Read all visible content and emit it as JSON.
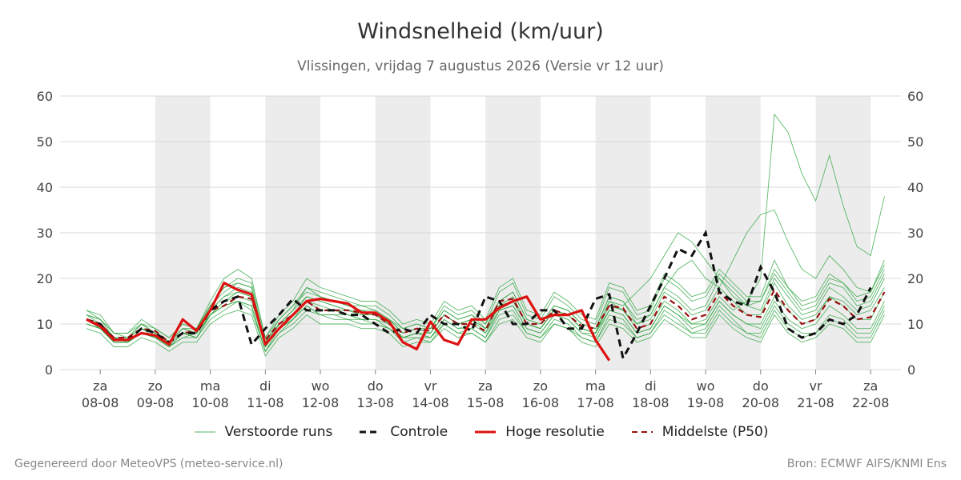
{
  "title": "Windsnelheid (km/uur)",
  "subtitle": "Vlissingen, vrijdag  7 augustus 2026 (Versie vr 12 uur)",
  "footer": {
    "generated": "Gegenereerd door MeteoVPS (meteo-service.nl)",
    "source": "Bron: ECMWF AIFS/KNMI Ens"
  },
  "colors": {
    "ensemble": "#27a33a",
    "control": "#111111",
    "high_res": "#dd1111",
    "median": "#991111",
    "weekend_band": "#ececec"
  },
  "legend": [
    {
      "label": "Verstoorde runs",
      "style": "ensemble"
    },
    {
      "label": "Controle",
      "style": "control"
    },
    {
      "label": "Hoge resolutie",
      "style": "high_res"
    },
    {
      "label": "Middelste (P50)",
      "style": "median"
    }
  ],
  "chart_data": {
    "type": "line",
    "title": "Windsnelheid (km/uur)",
    "subtitle": "Vlissingen, vrijdag  7 augustus 2026 (Versie vr 12 uur)",
    "ylim": [
      0,
      60
    ],
    "yticks": [
      0,
      10,
      20,
      30,
      40,
      50,
      60
    ],
    "y_axis_both_sides": true,
    "grid": true,
    "legend_position": "bottom",
    "x_range_days": [
      -0.73,
      14.55
    ],
    "time_step_days": 0.25,
    "shaded_day_indices": [
      1,
      3,
      5,
      7,
      9,
      11,
      13,
      15
    ],
    "x_ticks": [
      {
        "day": "za",
        "date": "08-08"
      },
      {
        "day": "zo",
        "date": "09-08"
      },
      {
        "day": "ma",
        "date": "10-08"
      },
      {
        "day": "di",
        "date": "11-08"
      },
      {
        "day": "wo",
        "date": "12-08"
      },
      {
        "day": "do",
        "date": "13-08"
      },
      {
        "day": "vr",
        "date": "14-08"
      },
      {
        "day": "za",
        "date": "15-08"
      },
      {
        "day": "zo",
        "date": "16-08"
      },
      {
        "day": "ma",
        "date": "17-08"
      },
      {
        "day": "di",
        "date": "18-08"
      },
      {
        "day": "wo",
        "date": "19-08"
      },
      {
        "day": "do",
        "date": "20-08"
      },
      {
        "day": "vr",
        "date": "21-08"
      },
      {
        "day": "za",
        "date": "22-08"
      }
    ],
    "x_start_day": -0.25,
    "series": [
      {
        "name": "Controle",
        "style": "control",
        "values": [
          11,
          10,
          6.5,
          6.5,
          9,
          8,
          6,
          8,
          8,
          13,
          15,
          16,
          5.5,
          9,
          12,
          15.5,
          13,
          13,
          13,
          12,
          12,
          10,
          8,
          9,
          8,
          12,
          10,
          10,
          8.5,
          16,
          15,
          10,
          10,
          13,
          13,
          9,
          9,
          15.5,
          16.5,
          2.5,
          8,
          14,
          20,
          26.5,
          25,
          30,
          17,
          15,
          14,
          22.5,
          17,
          9,
          7,
          8,
          11,
          10,
          12,
          18
        ]
      },
      {
        "name": "Hoge resolutie",
        "style": "high_res",
        "values": [
          11,
          9.5,
          6.5,
          6.5,
          8,
          7.5,
          5.5,
          11,
          8.5,
          13,
          19,
          17.5,
          16.5,
          5.5,
          9,
          12,
          15,
          15.5,
          15,
          14.5,
          12.5,
          12.5,
          10.5,
          6,
          4.5,
          10.5,
          6.5,
          5.5,
          11,
          11,
          13.5,
          15,
          16,
          11,
          12,
          12,
          13,
          6.5,
          2
        ]
      },
      {
        "name": "Middelste (P50)",
        "style": "median",
        "values": [
          11,
          10,
          7,
          7,
          9,
          8.5,
          6,
          8,
          8.5,
          13,
          14,
          16,
          15.5,
          6.5,
          10,
          12,
          15,
          13,
          13,
          13,
          12.5,
          12,
          10,
          8,
          9,
          8.5,
          12,
          10,
          10,
          8.5,
          15,
          15.5,
          10,
          10,
          13,
          12,
          9.5,
          9,
          14,
          13.5,
          9,
          10,
          16,
          14,
          11,
          12,
          17,
          14,
          12,
          11.5,
          17.5,
          13,
          10,
          11,
          15.5,
          14,
          11,
          11.5,
          17
        ]
      },
      {
        "name": "",
        "style": "ensemble",
        "values": [
          12,
          11,
          7,
          7,
          10,
          8,
          6,
          9,
          8,
          14,
          18,
          19,
          18,
          6,
          10,
          13,
          18,
          16,
          15,
          14,
          13,
          13,
          11,
          8,
          9,
          9,
          13,
          11,
          12,
          9,
          15,
          17,
          11,
          10,
          14,
          13,
          10,
          9,
          16,
          15,
          10,
          11,
          17,
          15,
          12,
          13,
          18,
          15,
          12,
          12,
          19,
          14,
          11,
          12,
          16,
          15,
          12,
          13,
          18
        ]
      },
      {
        "name": "",
        "style": "ensemble",
        "values": [
          10,
          9,
          6,
          6,
          8,
          7,
          5,
          7,
          7,
          12,
          14,
          15,
          14,
          4,
          9,
          11,
          14,
          12,
          12,
          12,
          11,
          11,
          9,
          7,
          8,
          7,
          11,
          9,
          9,
          7,
          13,
          14,
          9,
          8,
          12,
          11,
          8,
          7,
          13,
          12,
          8,
          9,
          14,
          12,
          10,
          10,
          15,
          12,
          10,
          9,
          15,
          11,
          9,
          10,
          14,
          12,
          9,
          9,
          15
        ]
      },
      {
        "name": "",
        "style": "ensemble",
        "values": [
          13,
          12,
          8,
          8,
          11,
          9,
          7,
          10,
          9,
          15,
          20,
          22,
          20,
          7,
          12,
          15,
          20,
          18,
          17,
          16,
          15,
          15,
          13,
          10,
          11,
          10,
          15,
          13,
          14,
          11,
          18,
          20,
          13,
          12,
          17,
          15,
          12,
          11,
          19,
          18,
          13,
          14,
          21,
          19,
          16,
          17,
          22,
          19,
          16,
          16,
          24,
          18,
          14,
          15,
          20,
          19,
          15,
          16,
          22
        ]
      },
      {
        "name": "",
        "style": "ensemble",
        "values": [
          9,
          8,
          5,
          5,
          7,
          6,
          4,
          6,
          6,
          10,
          12,
          13,
          12,
          3,
          7,
          9,
          12,
          10,
          10,
          10,
          9,
          9,
          8,
          5,
          6,
          6,
          9,
          7,
          8,
          6,
          10,
          11,
          7,
          6,
          10,
          9,
          6,
          5,
          10,
          9,
          6,
          7,
          11,
          9,
          7,
          7,
          12,
          9,
          7,
          6,
          12,
          8,
          6,
          7,
          10,
          9,
          6,
          6,
          12
        ]
      },
      {
        "name": "",
        "style": "ensemble",
        "values": [
          11,
          10,
          7,
          6,
          9,
          8,
          6,
          8,
          8,
          13,
          16,
          17,
          16,
          5,
          10,
          12,
          16,
          15,
          14,
          13,
          12,
          12,
          10,
          7,
          8,
          8,
          12,
          10,
          11,
          8,
          14,
          15,
          10,
          9,
          13,
          12,
          9,
          8,
          15,
          14,
          17,
          20,
          25,
          30,
          28,
          24,
          20,
          16,
          14,
          13,
          20,
          16,
          12,
          13,
          18,
          16,
          13,
          14,
          20
        ]
      },
      {
        "name": "",
        "style": "ensemble",
        "values": [
          12,
          10,
          7,
          7,
          9,
          7,
          6,
          8,
          8,
          12,
          15,
          17,
          16,
          5,
          9,
          12,
          15,
          14,
          13,
          13,
          12,
          12,
          10,
          8,
          9,
          8,
          12,
          10,
          11,
          9,
          14,
          16,
          10,
          9,
          13,
          12,
          9,
          8,
          15,
          13,
          10,
          12,
          18,
          22,
          24,
          20,
          18,
          24,
          30,
          34,
          35,
          28,
          22,
          20,
          25,
          22,
          18,
          17,
          24
        ]
      },
      {
        "name": "",
        "style": "ensemble",
        "values": [
          11,
          10,
          7,
          7,
          9,
          8,
          6,
          9,
          8,
          13,
          16,
          18,
          17,
          6,
          10,
          13,
          16,
          15,
          14,
          13,
          13,
          12,
          11,
          8,
          9,
          8,
          12,
          10,
          11,
          9,
          14,
          15,
          10,
          9,
          13,
          12,
          9,
          8,
          14,
          13,
          9,
          10,
          15,
          13,
          10,
          11,
          16,
          13,
          15,
          20,
          56,
          52,
          43,
          37,
          47,
          36,
          27,
          25,
          38
        ]
      },
      {
        "name": "",
        "style": "ensemble",
        "values": [
          10,
          9,
          6,
          6,
          8,
          7,
          5,
          8,
          7,
          12,
          15,
          16,
          15,
          5,
          9,
          11,
          15,
          13,
          13,
          12,
          11,
          11,
          10,
          7,
          8,
          7,
          11,
          9,
          10,
          8,
          13,
          14,
          9,
          8,
          12,
          11,
          8,
          8,
          13,
          12,
          8,
          9,
          14,
          12,
          9,
          10,
          15,
          12,
          10,
          10,
          16,
          13,
          10,
          11,
          16,
          14,
          11,
          11,
          17
        ]
      },
      {
        "name": "",
        "style": "ensemble",
        "values": [
          12,
          11,
          8,
          7,
          10,
          8,
          6,
          9,
          9,
          14,
          17,
          19,
          18,
          6,
          11,
          14,
          17,
          16,
          15,
          14,
          14,
          13,
          11,
          9,
          10,
          9,
          13,
          11,
          12,
          10,
          15,
          17,
          11,
          10,
          14,
          13,
          10,
          9,
          16,
          15,
          11,
          12,
          18,
          16,
          13,
          14,
          20,
          17,
          14,
          15,
          21,
          17,
          13,
          14,
          19,
          18,
          14,
          15,
          21
        ]
      },
      {
        "name": "",
        "style": "ensemble",
        "values": [
          11,
          9,
          6,
          6,
          8,
          7,
          5,
          7,
          8,
          12,
          14,
          15,
          14,
          4,
          8,
          11,
          14,
          12,
          12,
          11,
          11,
          10,
          9,
          7,
          7,
          7,
          10,
          8,
          9,
          7,
          12,
          13,
          8,
          7,
          11,
          10,
          7,
          6,
          12,
          11,
          7,
          8,
          13,
          11,
          8,
          9,
          14,
          11,
          8,
          8,
          14,
          10,
          8,
          8,
          12,
          11,
          8,
          8,
          14
        ]
      },
      {
        "name": "",
        "style": "ensemble",
        "values": [
          13,
          11,
          8,
          8,
          10,
          9,
          7,
          10,
          9,
          14,
          18,
          20,
          19,
          7,
          11,
          14,
          18,
          17,
          16,
          15,
          14,
          14,
          12,
          9,
          10,
          9,
          14,
          12,
          13,
          10,
          17,
          19,
          12,
          11,
          16,
          14,
          11,
          10,
          18,
          17,
          12,
          13,
          20,
          18,
          15,
          16,
          21,
          18,
          15,
          15,
          22,
          18,
          15,
          16,
          21,
          19,
          16,
          17,
          23
        ]
      },
      {
        "name": "",
        "style": "ensemble",
        "values": [
          10,
          9,
          6,
          6,
          8,
          7,
          5,
          8,
          7,
          11,
          13,
          15,
          13,
          4,
          8,
          10,
          13,
          12,
          11,
          11,
          10,
          10,
          9,
          6,
          7,
          6,
          10,
          8,
          8,
          6,
          11,
          12,
          8,
          7,
          10,
          9,
          7,
          6,
          11,
          10,
          7,
          8,
          12,
          10,
          8,
          8,
          13,
          10,
          8,
          7,
          13,
          9,
          7,
          8,
          11,
          10,
          7,
          7,
          13
        ]
      }
    ]
  }
}
